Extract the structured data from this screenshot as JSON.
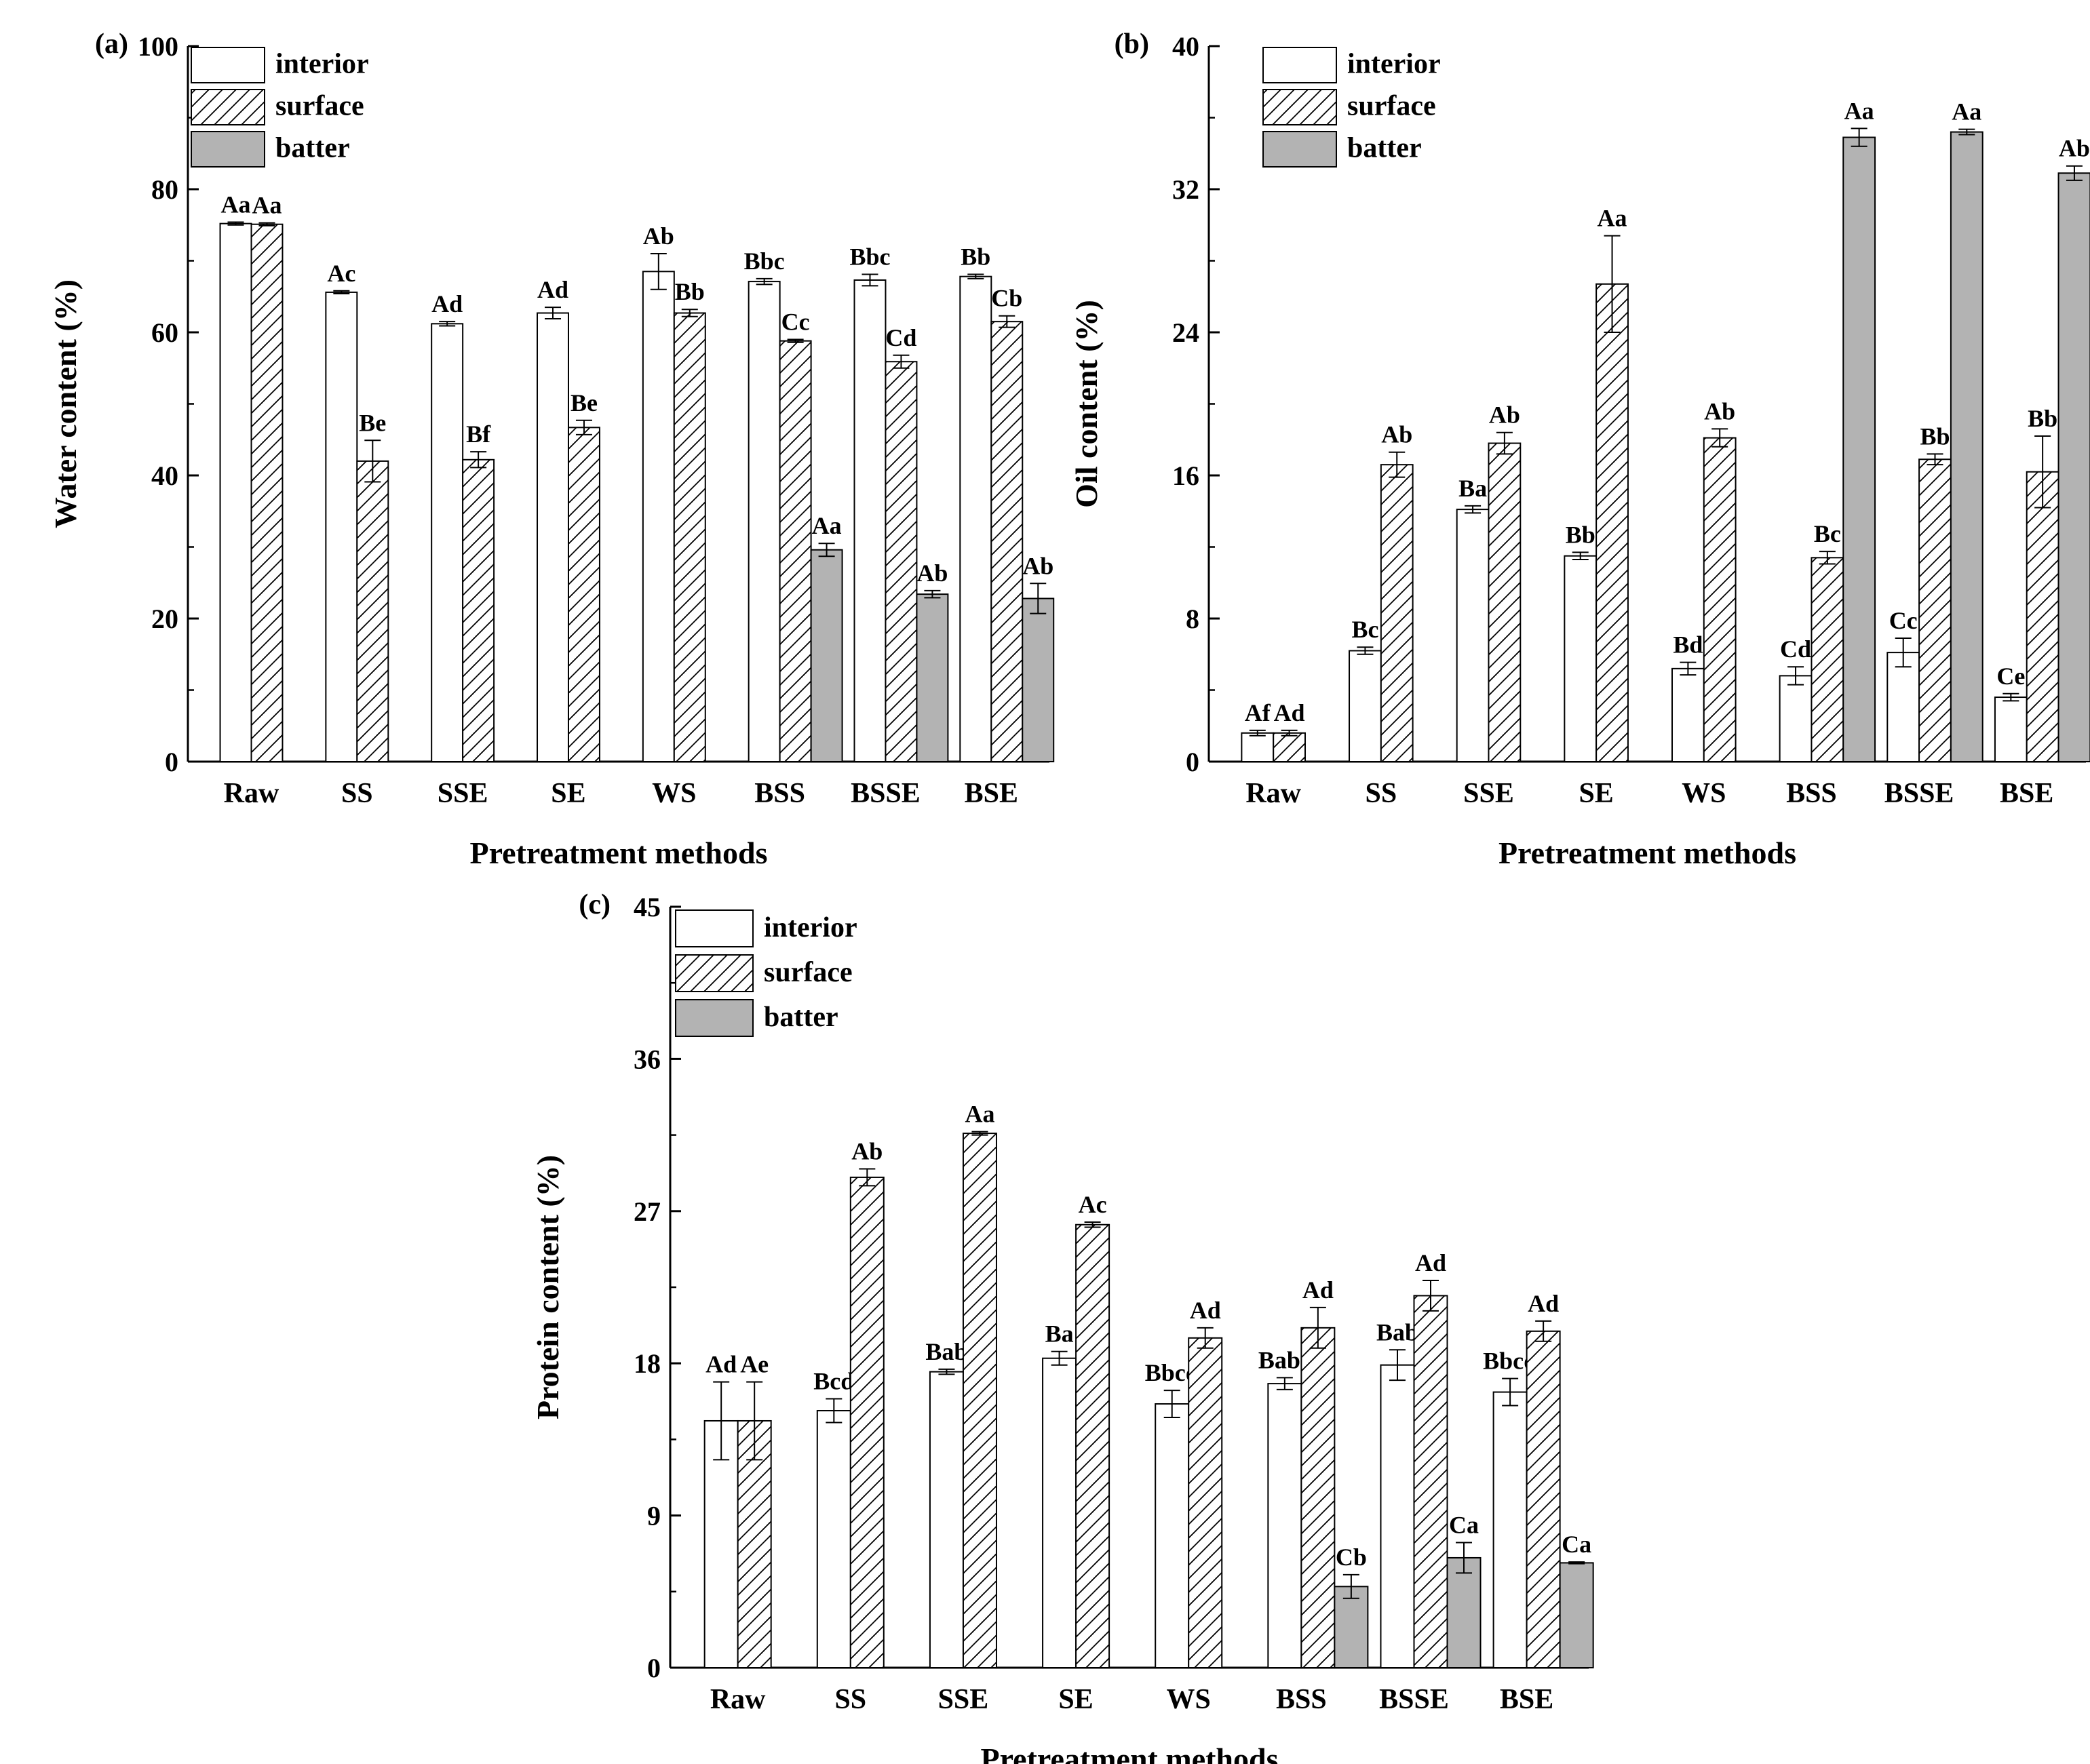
{
  "legend": [
    "interior",
    "surface",
    "batter"
  ],
  "colors": {
    "interior": "#ffffff",
    "surface": "#ffffff",
    "batter": "#b3b3b3",
    "stroke": "#000000"
  },
  "chart_data": [
    {
      "panel": "(a)",
      "type": "bar",
      "xlabel": "Pretreatment methods",
      "ylabel": "Water content (%)",
      "ylim": [
        0,
        100
      ],
      "yticks": [
        0,
        20,
        40,
        60,
        80,
        100
      ],
      "categories": [
        "Raw",
        "SS",
        "SSE",
        "SE",
        "WS",
        "BSS",
        "BSSE",
        "BSE"
      ],
      "series": [
        {
          "name": "interior",
          "values": [
            75.2,
            65.6,
            61.2,
            62.7,
            68.5,
            67.1,
            67.3,
            67.8
          ],
          "errors": [
            0.2,
            0.2,
            0.3,
            0.8,
            2.5,
            0.4,
            0.8,
            0.3
          ],
          "labels": [
            "Aa",
            "Ac",
            "Ad",
            "Ad",
            "Ab",
            "Bbc",
            "Bbc",
            "Bb"
          ]
        },
        {
          "name": "surface",
          "values": [
            75.1,
            42.0,
            42.2,
            46.7,
            62.7,
            58.8,
            55.9,
            61.5
          ],
          "errors": [
            0.2,
            2.9,
            1.1,
            1.0,
            0.5,
            0.2,
            0.9,
            0.8
          ],
          "labels": [
            "Aa",
            "Be",
            "Bf",
            "Be",
            "Bb",
            "Cc",
            "Cd",
            "Cb"
          ]
        },
        {
          "name": "batter",
          "values": [
            null,
            null,
            null,
            null,
            null,
            29.6,
            23.4,
            22.8
          ],
          "errors": [
            null,
            null,
            null,
            null,
            null,
            0.9,
            0.5,
            2.1
          ],
          "labels": [
            "",
            "",
            "",
            "",
            "",
            "Aa",
            "Ab",
            "Ab"
          ]
        }
      ]
    },
    {
      "panel": "(b)",
      "type": "bar",
      "xlabel": "Pretreatment methods",
      "ylabel": "Oil content (%)",
      "ylim": [
        0,
        40
      ],
      "yticks": [
        0,
        8,
        16,
        24,
        32,
        40
      ],
      "categories": [
        "Raw",
        "SS",
        "SSE",
        "SE",
        "WS",
        "BSS",
        "BSSE",
        "BSE"
      ],
      "series": [
        {
          "name": "interior",
          "values": [
            1.6,
            6.2,
            14.1,
            11.5,
            5.2,
            4.8,
            6.1,
            3.6
          ],
          "errors": [
            0.15,
            0.2,
            0.2,
            0.2,
            0.35,
            0.5,
            0.8,
            0.2
          ],
          "labels": [
            "Af",
            "Bc",
            "Ba",
            "Bb",
            "Bd",
            "Cd",
            "Cc",
            "Ce"
          ]
        },
        {
          "name": "surface",
          "values": [
            1.6,
            16.6,
            17.8,
            26.7,
            18.1,
            11.4,
            16.9,
            16.2
          ],
          "errors": [
            0.15,
            0.7,
            0.6,
            2.7,
            0.5,
            0.35,
            0.3,
            2.0
          ],
          "labels": [
            "Ad",
            "Ab",
            "Ab",
            "Aa",
            "Ab",
            "Bc",
            "Bb",
            "Bb"
          ]
        },
        {
          "name": "batter",
          "values": [
            null,
            null,
            null,
            null,
            null,
            34.9,
            35.2,
            32.9
          ],
          "errors": [
            null,
            null,
            null,
            null,
            null,
            0.5,
            0.15,
            0.4
          ],
          "labels": [
            "",
            "",
            "",
            "",
            "",
            "Aa",
            "Aa",
            "Ab"
          ]
        }
      ]
    },
    {
      "panel": "(c)",
      "type": "bar",
      "xlabel": "Pretreatment methods",
      "ylabel": "Protein content (%)",
      "ylim": [
        0,
        45
      ],
      "yticks": [
        0,
        9,
        18,
        27,
        36,
        45
      ],
      "categories": [
        "Raw",
        "SS",
        "SSE",
        "SE",
        "WS",
        "BSS",
        "BSSE",
        "BSE"
      ],
      "series": [
        {
          "name": "interior",
          "values": [
            14.6,
            15.2,
            17.5,
            18.3,
            15.6,
            16.8,
            17.9,
            16.3
          ],
          "errors": [
            2.3,
            0.7,
            0.15,
            0.4,
            0.8,
            0.35,
            0.9,
            0.8
          ],
          "labels": [
            "Ad",
            "Bcd",
            "Bab",
            "Ba",
            "Bbcd",
            "Babc",
            "Bab",
            "Bbcd"
          ]
        },
        {
          "name": "surface",
          "values": [
            14.6,
            29.0,
            31.6,
            26.2,
            19.5,
            20.1,
            22.0,
            19.9
          ],
          "errors": [
            2.3,
            0.5,
            0.1,
            0.15,
            0.6,
            1.2,
            0.9,
            0.6
          ],
          "labels": [
            "Ae",
            "Ab",
            "Aa",
            "Ac",
            "Ad",
            "Ad",
            "Ad",
            "Ad"
          ]
        },
        {
          "name": "batter",
          "values": [
            null,
            null,
            null,
            null,
            null,
            4.8,
            6.5,
            6.2
          ],
          "errors": [
            null,
            null,
            null,
            null,
            null,
            0.7,
            0.9,
            0.05
          ],
          "labels": [
            "",
            "",
            "",
            "",
            "",
            "Cb",
            "Ca",
            "Ca"
          ]
        }
      ]
    }
  ]
}
